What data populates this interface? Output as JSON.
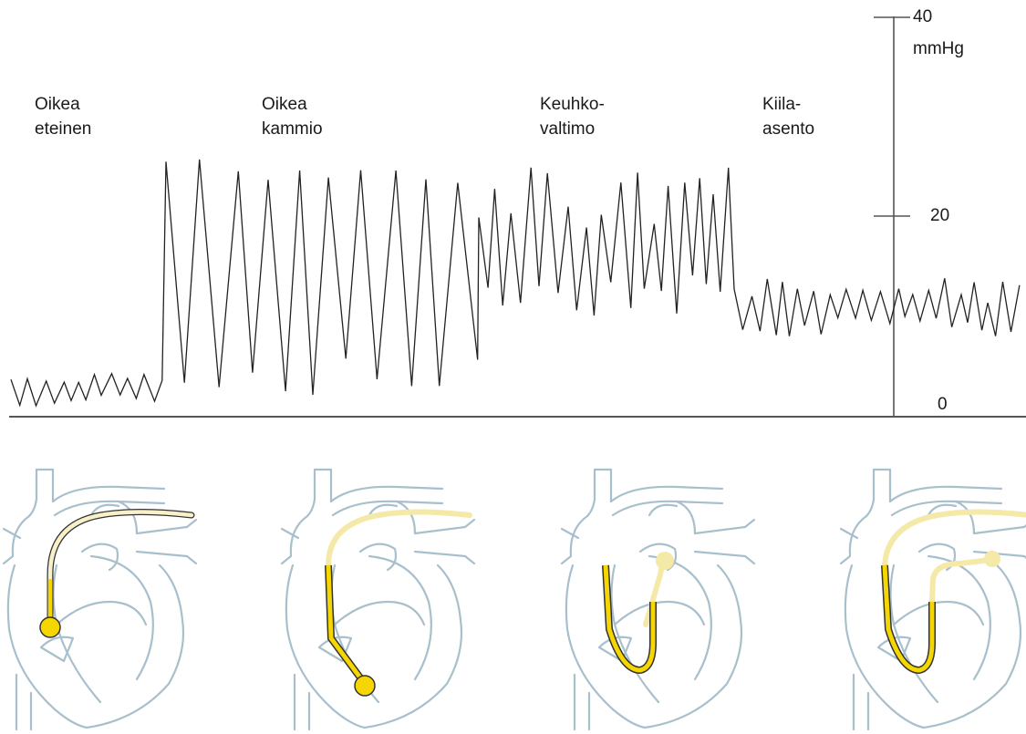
{
  "phases": [
    {
      "line1": "Oikea",
      "line2": "eteinen"
    },
    {
      "line1": "Oikea",
      "line2": "kammio"
    },
    {
      "line1": "Keuhko-",
      "line2": "valtimo"
    },
    {
      "line1": "Kiila-",
      "line2": "asento"
    }
  ],
  "scale": {
    "unit": "mmHg",
    "ticks": [
      "40",
      "20",
      "0"
    ]
  },
  "pressure_trace": {
    "description_values_mmHg": "approximate pressure levels per phase",
    "segments": [
      {
        "phase": 0,
        "min": 1,
        "max": 4.5
      },
      {
        "phase": 1,
        "min": 2,
        "max": 26
      },
      {
        "phase": 2,
        "min": 10,
        "max": 25
      },
      {
        "phase": 3,
        "min": 8,
        "max": 14
      }
    ]
  },
  "colors": {
    "trace": "#222222",
    "axis": "#555555",
    "heart_outline": "#a8bfcc",
    "catheter_active": "#f5d600",
    "catheter_outline": "#333333",
    "catheter_faded": "#f5e9a8",
    "catheter_pale": "#f8f0c8"
  }
}
